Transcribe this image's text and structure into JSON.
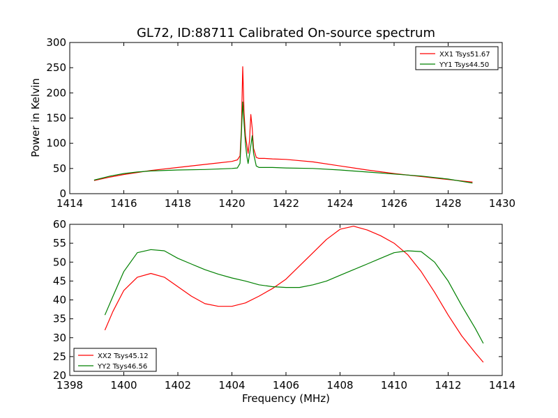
{
  "figure": {
    "title": "GL72, ID:88711 Calibrated On-source spectrum"
  },
  "chart_data": [
    {
      "type": "line",
      "title": "GL72, ID:88711 Calibrated On-source spectrum",
      "xlabel": "",
      "ylabel": "Power in Kelvin",
      "xlim": [
        1414,
        1430
      ],
      "ylim": [
        0,
        300
      ],
      "xticks": [
        1414,
        1416,
        1418,
        1420,
        1422,
        1424,
        1426,
        1428,
        1430
      ],
      "yticks": [
        0,
        50,
        100,
        150,
        200,
        250,
        300
      ],
      "legend_position": "top-right",
      "series": [
        {
          "name": "XX1 Tsys51.67",
          "color": "#ff0000",
          "x": [
            1414.9,
            1415.5,
            1416.0,
            1416.5,
            1417.0,
            1418.0,
            1419.0,
            1419.5,
            1420.0,
            1420.2,
            1420.3,
            1420.35,
            1420.4,
            1420.45,
            1420.5,
            1420.6,
            1420.65,
            1420.7,
            1420.75,
            1420.8,
            1420.9,
            1421.0,
            1421.2,
            1421.5,
            1422.0,
            1423.0,
            1424.0,
            1425.0,
            1426.0,
            1427.0,
            1428.0,
            1428.9
          ],
          "y": [
            26,
            33,
            38,
            42,
            46,
            52,
            58,
            61,
            64,
            67,
            75,
            130,
            252,
            160,
            115,
            80,
            105,
            157,
            130,
            90,
            72,
            70,
            70,
            69,
            68,
            63,
            55,
            47,
            40,
            34,
            28,
            23
          ]
        },
        {
          "name": "YY1 Tsys44.50",
          "color": "#008000",
          "x": [
            1414.9,
            1415.5,
            1416.0,
            1416.5,
            1417.0,
            1418.0,
            1419.0,
            1420.0,
            1420.2,
            1420.3,
            1420.35,
            1420.4,
            1420.45,
            1420.5,
            1420.55,
            1420.6,
            1420.7,
            1420.75,
            1420.8,
            1420.9,
            1421.0,
            1421.5,
            1422.0,
            1423.0,
            1424.0,
            1425.0,
            1426.0,
            1427.0,
            1428.0,
            1428.9
          ],
          "y": [
            27,
            35,
            40,
            43,
            45,
            47,
            48,
            50,
            51,
            60,
            120,
            182,
            140,
            100,
            75,
            60,
            95,
            115,
            80,
            55,
            52,
            52,
            51,
            50,
            47,
            43,
            39,
            35,
            29,
            21
          ]
        }
      ]
    },
    {
      "type": "line",
      "title": "",
      "xlabel": "Frequency (MHz)",
      "ylabel": "",
      "xlim": [
        1398,
        1414
      ],
      "ylim": [
        20,
        60
      ],
      "xticks": [
        1398,
        1400,
        1402,
        1404,
        1406,
        1408,
        1410,
        1412,
        1414
      ],
      "yticks": [
        20,
        25,
        30,
        35,
        40,
        45,
        50,
        55,
        60
      ],
      "legend_position": "bottom-left",
      "series": [
        {
          "name": "XX2 Tsys45.12",
          "color": "#ff0000",
          "x": [
            1399.3,
            1399.6,
            1400.0,
            1400.5,
            1401.0,
            1401.5,
            1402.0,
            1402.5,
            1403.0,
            1403.5,
            1404.0,
            1404.5,
            1405.0,
            1405.5,
            1406.0,
            1406.5,
            1407.0,
            1407.5,
            1408.0,
            1408.5,
            1409.0,
            1409.5,
            1410.0,
            1410.5,
            1411.0,
            1411.5,
            1412.0,
            1412.5,
            1413.0,
            1413.3
          ],
          "y": [
            32,
            37,
            42.5,
            46,
            47,
            46,
            43.5,
            41,
            39,
            38.3,
            38.3,
            39.2,
            41,
            43,
            45.5,
            49,
            52.5,
            56,
            58.7,
            59.5,
            58.5,
            57,
            55,
            52,
            47.5,
            42,
            36,
            30.5,
            26,
            23.5
          ]
        },
        {
          "name": "YY2 Tsys46.56",
          "color": "#008000",
          "x": [
            1399.3,
            1399.6,
            1400.0,
            1400.5,
            1401.0,
            1401.5,
            1402.0,
            1402.5,
            1403.0,
            1403.5,
            1404.0,
            1404.5,
            1405.0,
            1405.5,
            1406.0,
            1406.5,
            1407.0,
            1407.5,
            1408.0,
            1408.5,
            1409.0,
            1409.5,
            1410.0,
            1410.5,
            1411.0,
            1411.5,
            1412.0,
            1412.5,
            1413.0,
            1413.3
          ],
          "y": [
            36,
            41,
            47.5,
            52.5,
            53.3,
            53,
            51,
            49.5,
            48,
            46.8,
            45.8,
            45,
            44,
            43.5,
            43.3,
            43.3,
            44,
            45,
            46.5,
            48,
            49.5,
            51,
            52.5,
            53,
            52.8,
            50,
            45,
            38.5,
            32.5,
            28.5
          ]
        }
      ]
    }
  ]
}
